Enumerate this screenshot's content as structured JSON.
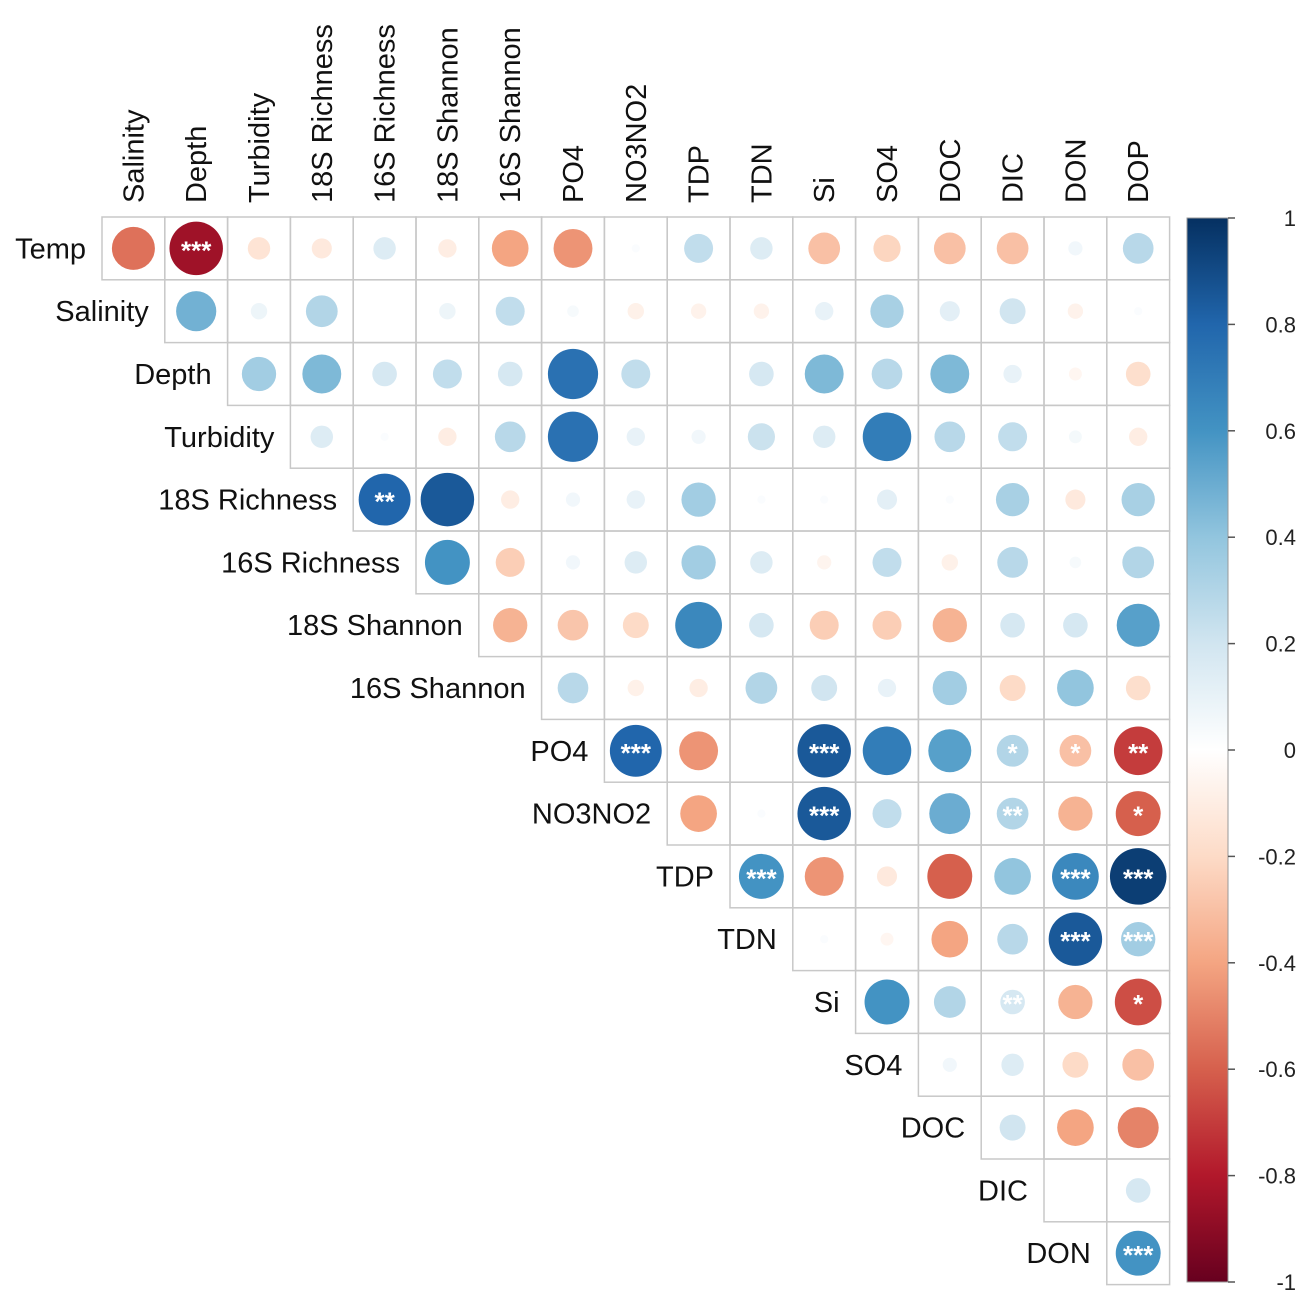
{
  "chart_data": {
    "type": "heatmap",
    "style": "correlation-circles-upper-triangle",
    "row_labels": [
      "Temp",
      "Salinity",
      "Depth",
      "Turbidity",
      "18S Richness",
      "16S Richness",
      "18S Shannon",
      "16S Shannon",
      "PO4",
      "NO3NO2",
      "TDP",
      "TDN",
      "Si",
      "SO4",
      "DOC",
      "DIC",
      "DON"
    ],
    "col_labels": [
      "Salinity",
      "Depth",
      "Turbidity",
      "18S Richness",
      "16S Richness",
      "18S Shannon",
      "16S Shannon",
      "PO4",
      "NO3NO2",
      "TDP",
      "TDN",
      "Si",
      "SO4",
      "DOC",
      "DIC",
      "DON",
      "DOP"
    ],
    "colorbar": {
      "min": -1,
      "max": 1,
      "ticks": [
        "1",
        "0.8",
        "0.6",
        "0.4",
        "0.2",
        "0",
        "-0.2",
        "-0.4",
        "-0.6",
        "-0.8",
        "-1"
      ]
    },
    "correlations": [
      [
        -0.55,
        -0.85,
        -0.15,
        -0.12,
        0.15,
        -0.1,
        -0.4,
        -0.45,
        0.02,
        0.25,
        0.15,
        -0.3,
        -0.22,
        -0.3,
        -0.3,
        0.06,
        0.28
      ],
      [
        0.48,
        0.08,
        0.3,
        0,
        0.08,
        0.25,
        0.04,
        -0.08,
        -0.07,
        -0.07,
        0.1,
        0.33,
        0.12,
        0.2,
        -0.07,
        0.02
      ],
      [
        0.35,
        0.45,
        0.18,
        0.25,
        0.18,
        0.75,
        0.25,
        0,
        0.18,
        0.45,
        0.28,
        0.45,
        0.1,
        -0.05,
        -0.18
      ],
      [
        0.15,
        0.02,
        -0.1,
        0.28,
        0.75,
        0.1,
        0.06,
        0.22,
        0.15,
        0.7,
        0.28,
        0.25,
        0.05,
        -0.1
      ],
      [
        0.8,
        0.85,
        -0.1,
        0.06,
        0.1,
        0.35,
        0.02,
        0.02,
        0.12,
        0.02,
        0.33,
        -0.12,
        0.33
      ],
      [
        0.6,
        -0.25,
        0.06,
        0.15,
        0.35,
        0.15,
        -0.06,
        0.25,
        -0.08,
        0.28,
        0.04,
        0.3
      ],
      [
        -0.35,
        -0.28,
        -0.2,
        0.65,
        0.18,
        -0.25,
        -0.25,
        -0.35,
        0.18,
        0.18,
        0.55
      ],
      [
        0.28,
        -0.08,
        -0.1,
        0.3,
        0.2,
        0.1,
        0.35,
        -0.2,
        0.4,
        -0.18
      ],
      [
        0.8,
        -0.45,
        0,
        0.85,
        0.7,
        0.55,
        0.3,
        -0.3,
        -0.7
      ],
      [
        -0.4,
        0.02,
        0.85,
        0.25,
        0.5,
        0.3,
        -0.35,
        -0.6
      ],
      [
        0.6,
        -0.45,
        -0.12,
        -0.6,
        0.4,
        0.65,
        0.95
      ],
      [
        0.02,
        -0.05,
        -0.4,
        0.28,
        0.85,
        0.35
      ],
      [
        0.6,
        0.3,
        0.18,
        -0.35,
        -0.65
      ],
      [
        0.06,
        0.15,
        -0.2,
        -0.3
      ],
      [
        0.2,
        -0.4,
        -0.5
      ],
      [
        0,
        0.18
      ],
      [
        0.6
      ]
    ],
    "significance": [
      [
        "",
        "***",
        "",
        "",
        "",
        "",
        "",
        "",
        "",
        "",
        "",
        "",
        "",
        "",
        "",
        "",
        ""
      ],
      [
        "",
        "",
        "",
        "",
        "",
        "",
        "",
        "",
        "",
        "",
        "",
        "",
        "",
        "",
        "",
        ""
      ],
      [
        "",
        "",
        "",
        "",
        "",
        "",
        "",
        "",
        "",
        "",
        "",
        "",
        "",
        "",
        ""
      ],
      [
        "",
        "",
        "",
        "",
        "",
        "",
        "",
        "",
        "",
        "",
        "",
        "",
        "",
        ""
      ],
      [
        "**",
        "",
        "",
        "",
        "",
        "",
        "",
        "",
        "",
        "",
        "",
        "",
        ""
      ],
      [
        "",
        "",
        "",
        "",
        "",
        "",
        "",
        "",
        "",
        "",
        "",
        ""
      ],
      [
        "",
        "",
        "",
        "",
        "",
        "",
        "",
        "",
        "",
        "",
        ""
      ],
      [
        "",
        "",
        "",
        "",
        "",
        "",
        "",
        "",
        "",
        ""
      ],
      [
        "***",
        "",
        "",
        "***",
        "",
        "",
        "*",
        "*",
        "**"
      ],
      [
        "",
        "",
        "***",
        "",
        "",
        "**",
        "",
        "*"
      ],
      [
        "***",
        "",
        "",
        "",
        "",
        "***",
        "***"
      ],
      [
        "",
        "",
        "",
        "",
        "***",
        "***"
      ],
      [
        "",
        "",
        "**",
        "",
        "*"
      ],
      [
        "",
        "",
        "",
        ""
      ],
      [
        "",
        "",
        ""
      ],
      [
        "",
        ""
      ],
      [
        "***"
      ]
    ]
  }
}
